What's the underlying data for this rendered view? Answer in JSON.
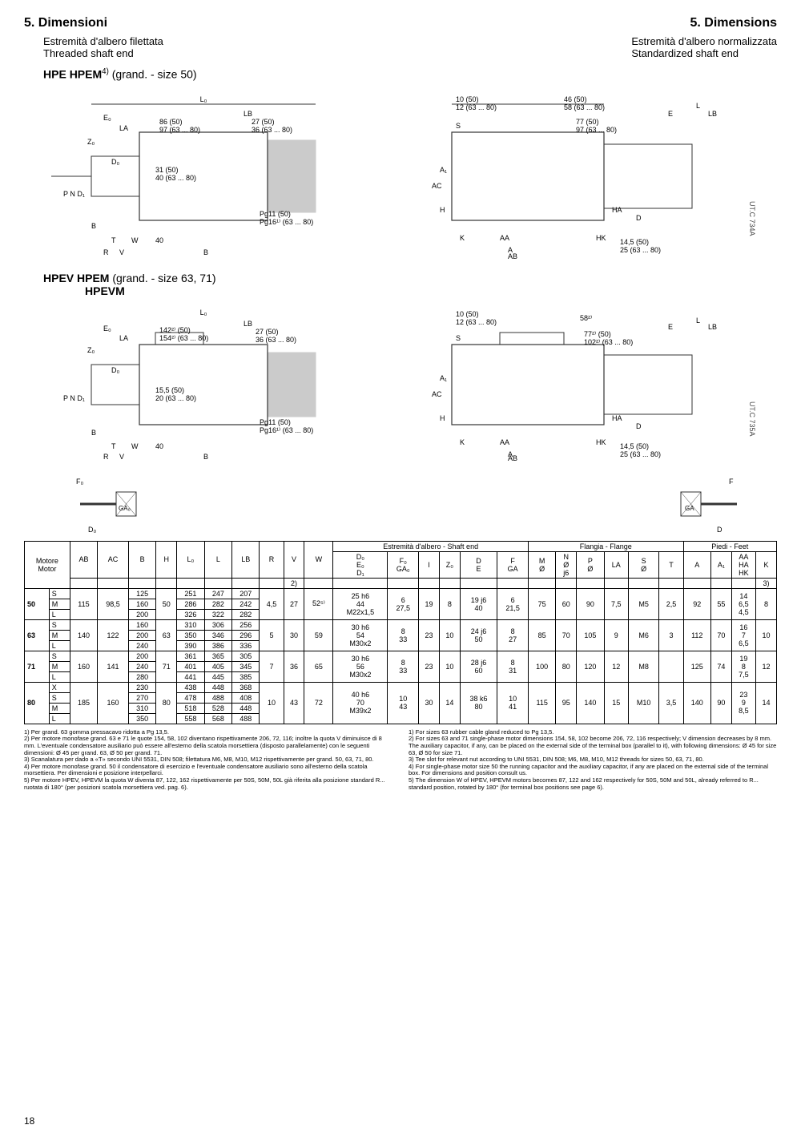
{
  "page_number": "18",
  "heading_left": "5. Dimensioni",
  "heading_right": "5. Dimensions",
  "sub_left_1": "Estremità d'albero filettata",
  "sub_left_2": "Threaded shaft end",
  "sub_right_1": "Estremità d'albero normalizzata",
  "sub_right_2": "Standardized shaft end",
  "model1_main": "HPE",
  "model1_sub": "HPEM",
  "model1_note": "4)",
  "model1_size": "(grand. - size 50)",
  "model2_main": "HPEV",
  "model2_sub": "HPEM",
  "model2_sub2": "HPEVM",
  "model2_size": "(grand. - size 63, 71)",
  "utref1": "UT.C 734A",
  "utref2": "UT.C 735A",
  "dim_labels_1": [
    "L₀",
    "LB",
    "E₀",
    "LA",
    "Z₀",
    "86 (50)",
    "97 (63 ... 80)",
    "27 (50)",
    "36 (63 ... 80)",
    "D₀",
    "P N D₁",
    "31 (50)",
    "40 (63 ... 80)",
    "Pg11 (50)",
    "Pg16¹⁾ (63 ... 80)",
    "B",
    "T",
    "W",
    "40",
    "R",
    "V"
  ],
  "dim_labels_2": [
    "10 (50)",
    "12 (63 ... 80)",
    "46 (50)",
    "58 (63 ... 80)",
    "L",
    "E",
    "LB",
    "S",
    "77 (50)",
    "97 (63 ... 80)",
    "A₁",
    "AC",
    "H",
    "HA",
    "D",
    "K",
    "AA",
    "HK",
    "14,5 (50)",
    "25 (63 ... 80)",
    "A",
    "AB"
  ],
  "dim_labels_3": [
    "L₀",
    "LB",
    "E₀",
    "LA",
    "Z₀",
    "142²⁾ (50)",
    "154²⁾ (63 ... 80)",
    "27 (50)",
    "36 (63 ... 80)",
    "D₀",
    "P N D₁",
    "15,5 (50)",
    "20 (63 ... 80)",
    "Pg11 (50)",
    "Pg16¹⁾ (63 ... 80)",
    "B",
    "T",
    "W",
    "40",
    "R",
    "V"
  ],
  "dim_labels_4": [
    "10 (50)",
    "12 (63 ... 80)",
    "58²⁾",
    "L",
    "E",
    "LB",
    "S",
    "77²⁾ (50)",
    "102²⁾ (63 ... 80)",
    "A₁",
    "AC",
    "H",
    "HA",
    "D",
    "K",
    "AA",
    "HK",
    "14,5 (50)",
    "25 (63 ... 80)",
    "A",
    "AB"
  ],
  "table": {
    "hdr_motore": "Motore",
    "hdr_motor": "Motor",
    "hdr_shaft_it_en": "Estremità d'albero - Shaft end",
    "hdr_flange": "Flangia - Flange",
    "hdr_feet": "Piedi - Feet",
    "cols": [
      "AB",
      "AC",
      "B",
      "H",
      "L₀",
      "L",
      "LB",
      "R",
      "V",
      "W",
      "D₀\nE₀\nD₁",
      "F₀\nGA₀",
      "I",
      "Z₀",
      "D\nE",
      "F\nGA",
      "M\nØ",
      "N\nØ\nj6",
      "P\nØ",
      "LA",
      "S\nØ",
      "T",
      "A",
      "A₁",
      "AA\nHA\nHK",
      "K"
    ],
    "note2": "2)",
    "note3": "3)",
    "rows": [
      {
        "sz": "50",
        "var": "S",
        "AB": "115",
        "AC": "98,5",
        "B": "125",
        "H": "50",
        "L0": "251",
        "L": "247",
        "LB": "207",
        "R": "4,5",
        "V": "27",
        "W": "52⁵⁾",
        "D0": "25 h6\n44\nM22x1,5",
        "F0": "6\n27,5",
        "I": "19",
        "Z0": "8",
        "D": "19 j6\n40",
        "F": "6\n21,5",
        "M": "75",
        "N": "60",
        "P": "90",
        "LA": "7,5",
        "S": "M5",
        "T": "2,5",
        "A": "92",
        "A1": "55",
        "AA": "14\n6,5\n4,5",
        "K": "8"
      },
      {
        "sz": "",
        "var": "M",
        "B": "160",
        "L0": "286",
        "L": "282",
        "LB": "242"
      },
      {
        "sz": "",
        "var": "L",
        "B": "200",
        "L0": "326",
        "L": "322",
        "LB": "282"
      },
      {
        "sz": "63",
        "var": "S",
        "AB": "140",
        "AC": "122",
        "B": "160",
        "H": "63",
        "L0": "310",
        "L": "306",
        "LB": "256",
        "R": "5",
        "V": "30",
        "W": "59",
        "D0": "30 h6\n54\nM30x2",
        "F0": "8\n33",
        "I": "23",
        "Z0": "10",
        "D": "24 j6\n50",
        "F": "8\n27",
        "M": "85",
        "N": "70",
        "P": "105",
        "LA": "9",
        "S": "M6",
        "T": "3",
        "A": "112",
        "A1": "70",
        "AA": "16\n7\n6,5",
        "K": "10"
      },
      {
        "sz": "",
        "var": "M",
        "B": "200",
        "L0": "350",
        "L": "346",
        "LB": "296"
      },
      {
        "sz": "",
        "var": "L",
        "B": "240",
        "L0": "390",
        "L": "386",
        "LB": "336"
      },
      {
        "sz": "71",
        "var": "S",
        "AB": "160",
        "AC": "141",
        "B": "200",
        "H": "71",
        "L0": "361",
        "L": "365",
        "LB": "305",
        "R": "7",
        "V": "36",
        "W": "65",
        "D0": "30 h6\n56\nM30x2",
        "F0": "8\n33",
        "I": "23",
        "Z0": "10",
        "D": "28 j6\n60",
        "F": "8\n31",
        "M": "100",
        "N": "80",
        "P": "120",
        "LA": "12",
        "S": "M8",
        "T": "",
        "A": "125",
        "A1": "74",
        "AA": "19\n8\n7,5",
        "K": "12"
      },
      {
        "sz": "",
        "var": "M",
        "B": "240",
        "L0": "401",
        "L": "405",
        "LB": "345"
      },
      {
        "sz": "",
        "var": "L",
        "B": "280",
        "L0": "441",
        "L": "445",
        "LB": "385"
      },
      {
        "sz": "80",
        "var": "X",
        "AB": "185",
        "AC": "160",
        "B": "230",
        "H": "80",
        "L0": "438",
        "L": "448",
        "LB": "368",
        "R": "10",
        "V": "43",
        "W": "72",
        "D0": "40 h6\n70\nM39x2",
        "F0": "10\n43",
        "I": "30",
        "Z0": "14",
        "D": "38 k6\n80",
        "F": "10\n41",
        "M": "115",
        "N": "95",
        "P": "140",
        "LA": "15",
        "S": "M10",
        "T": "3,5",
        "A": "140",
        "A1": "90",
        "AA": "23\n9\n8,5",
        "K": "14"
      },
      {
        "sz": "",
        "var": "S",
        "B": "270",
        "L0": "478",
        "L": "488",
        "LB": "408"
      },
      {
        "sz": "",
        "var": "M",
        "B": "310",
        "L0": "518",
        "L": "528",
        "LB": "448"
      },
      {
        "sz": "",
        "var": "L",
        "B": "350",
        "L0": "558",
        "L": "568",
        "LB": "488"
      }
    ]
  },
  "fn_it": [
    "1) Per grand. 63 gomma pressacavo ridotta a Pg 13,5.",
    "2) Per motore monofase grand. 63 e 71 le quote 154, 58, 102 diventano rispettivamente 206, 72, 116; inoltre la quota V diminuisce di 8 mm. L'eventuale condensatore ausiliario può essere all'esterno della scatola morsettiera (disposto parallelamente) con le seguenti dimensioni: Ø 45 per grand. 63, Ø 50 per grand. 71.",
    "3) Scanalatura per dado a «T» secondo UNI 5531, DIN 508; filettatura M6, M8, M10, M12 rispettivamente per grand. 50, 63, 71, 80.",
    "4) Per motore monofase grand. 50 il condensatore di esercizio e l'eventuale condensatore ausiliario sono all'esterno della scatola morsettiera. Per dimensioni e posizione interpellarci.",
    "5) Per motore HPEV, HPEVM la quota W diventa 87, 122, 162 rispettivamente per 50S, 50M, 50L già riferita alla posizione standard R... ruotata di 180° (per posizioni scatola morsettiera ved. pag. 6)."
  ],
  "fn_en": [
    "1) For sizes 63 rubber cable gland reduced to Pg 13,5.",
    "2) For sizes 63 and 71 single-phase motor dimensions 154, 58, 102 become 206, 72, 116 respectively; V dimension decreases by 8 mm. The auxiliary capacitor, if any, can be placed on the external side of the terminal box (parallel to it), with following dimensions: Ø 45 for size 63, Ø 50 for size 71.",
    "3) Tee slot for relevant nut according to UNI 5531, DIN 508; M6, M8, M10, M12 threads for sizes 50, 63, 71, 80.",
    "4) For single-phase motor size 50 the running capacitor and the auxiliary capacitor, if any are placed on the external side of the terminal box. For dimensions and position consult us.",
    "5) The dimension W of HPEV, HPEVM motors becomes 87, 122 and 162 respectively for 50S, 50M and 50L, already referred to R... standard position, rotated by 180° (for terminal box positions see page 6)."
  ]
}
